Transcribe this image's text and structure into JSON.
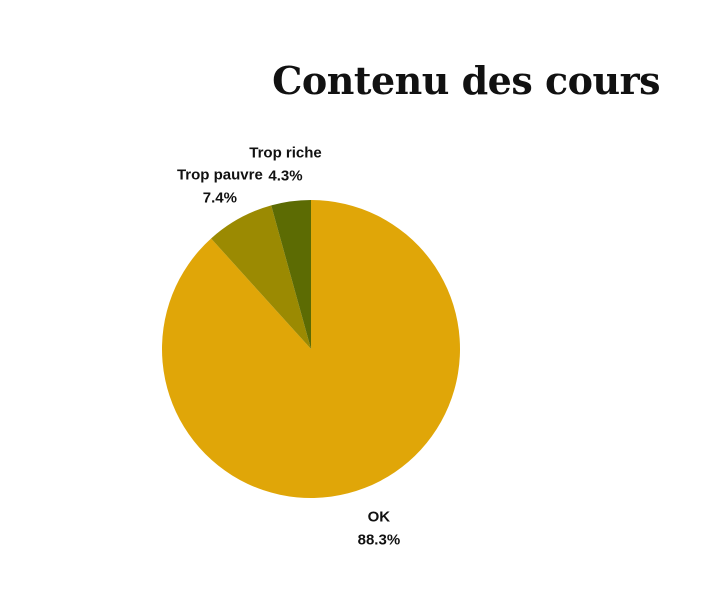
{
  "chart_data": {
    "type": "pie",
    "title": "Contenu des cours",
    "slices": [
      {
        "label": "OK",
        "value": 88.3,
        "display": "88.3%",
        "color": "#E0A608"
      },
      {
        "label": "Trop pauvre",
        "value": 7.4,
        "display": "7.4%",
        "color": "#9B8A02"
      },
      {
        "label": "Trop riche",
        "value": 4.3,
        "display": "4.3%",
        "color": "#5C6B03"
      }
    ],
    "legend": "none",
    "labels": "outside"
  }
}
